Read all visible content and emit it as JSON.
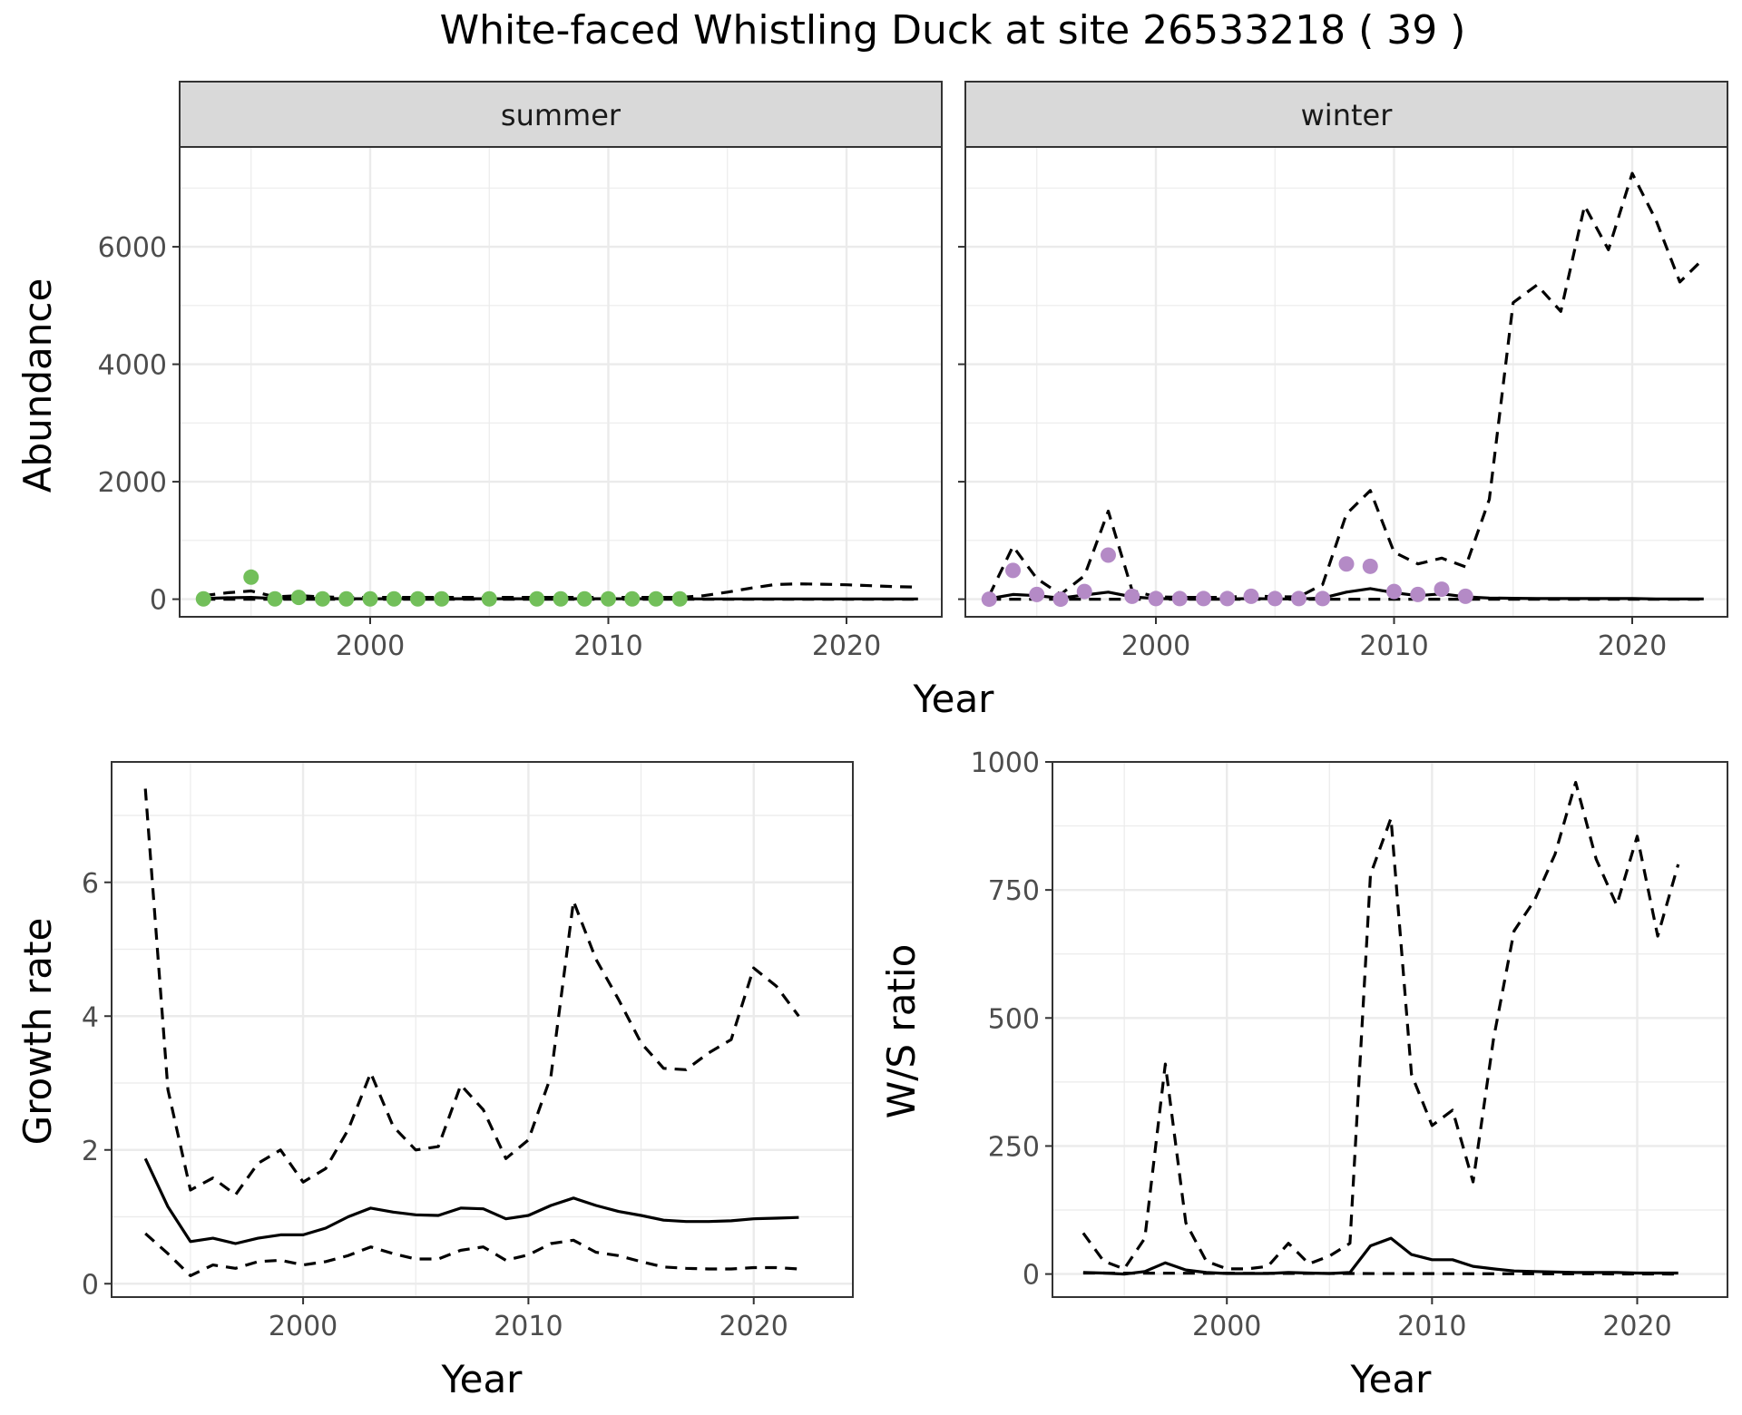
{
  "title": "White-faced Whistling Duck at site 26533218 ( 39 )",
  "chart_data": [
    {
      "type": "line",
      "panel": "summer",
      "xlabel": "Year",
      "ylabel": "Abundance",
      "xlim": [
        1992,
        2024
      ],
      "ylim": [
        -300,
        7700
      ],
      "xticks": [
        2000,
        2010,
        2020
      ],
      "yticks": [
        0,
        2000,
        4000,
        6000
      ],
      "point_color": "#72bf5a",
      "observed": {
        "x": [
          1993,
          1995,
          1996,
          1997,
          1998,
          1999,
          2000,
          2001,
          2002,
          2003,
          2005,
          2007,
          2008,
          2009,
          2010,
          2011,
          2012,
          2013
        ],
        "y": [
          5,
          375,
          5,
          30,
          5,
          5,
          5,
          5,
          5,
          5,
          5,
          5,
          5,
          5,
          5,
          5,
          5,
          5
        ]
      },
      "series": [
        {
          "style": "solid",
          "x": [
            1993,
            1994,
            1995,
            1996,
            1997,
            1998,
            1999,
            2000,
            2001,
            2002,
            2003,
            2004,
            2005,
            2006,
            2007,
            2008,
            2009,
            2010,
            2011,
            2012,
            2013,
            2014,
            2015,
            2016,
            2017,
            2018,
            2019,
            2020,
            2021,
            2022,
            2023
          ],
          "y": [
            10,
            25,
            30,
            12,
            15,
            10,
            8,
            8,
            8,
            8,
            8,
            8,
            8,
            8,
            8,
            8,
            8,
            8,
            8,
            8,
            8,
            5,
            5,
            5,
            5,
            5,
            5,
            5,
            5,
            5,
            5
          ]
        },
        {
          "style": "dashed",
          "x": [
            1993,
            1994,
            1995,
            1996,
            1997,
            1998,
            1999,
            2000,
            2001,
            2002,
            2003,
            2004,
            2005,
            2006,
            2007,
            2008,
            2009,
            2010,
            2011,
            2012,
            2013,
            2014,
            2015,
            2016,
            2017,
            2018,
            2019,
            2020,
            2021,
            2022,
            2023
          ],
          "y": [
            60,
            110,
            140,
            40,
            60,
            40,
            30,
            30,
            30,
            30,
            30,
            30,
            30,
            30,
            30,
            30,
            30,
            30,
            30,
            30,
            30,
            60,
            120,
            190,
            250,
            260,
            255,
            245,
            230,
            215,
            205
          ]
        },
        {
          "style": "dashed",
          "x": [
            1993,
            2023
          ],
          "y": [
            0,
            0
          ]
        }
      ]
    },
    {
      "type": "line",
      "panel": "winter",
      "xlabel": "Year",
      "ylabel": "Abundance",
      "xlim": [
        1992,
        2024
      ],
      "ylim": [
        -300,
        7700
      ],
      "xticks": [
        2000,
        2010,
        2020
      ],
      "yticks": [
        0,
        2000,
        4000,
        6000
      ],
      "point_color": "#b48ac6",
      "observed": {
        "x": [
          1993,
          1994,
          1995,
          1996,
          1997,
          1998,
          1999,
          2000,
          2001,
          2002,
          2003,
          2004,
          2005,
          2006,
          2007,
          2008,
          2009,
          2010,
          2011,
          2012,
          2013
        ],
        "y": [
          0,
          490,
          80,
          0,
          130,
          750,
          50,
          10,
          10,
          10,
          10,
          50,
          10,
          10,
          10,
          600,
          560,
          130,
          80,
          170,
          50
        ]
      },
      "series": [
        {
          "style": "solid",
          "x": [
            1993,
            1994,
            1995,
            1996,
            1997,
            1998,
            1999,
            2000,
            2001,
            2002,
            2003,
            2004,
            2005,
            2006,
            2007,
            2008,
            2009,
            2010,
            2011,
            2012,
            2013,
            2014,
            2015,
            2016,
            2017,
            2018,
            2019,
            2020,
            2021,
            2022,
            2023
          ],
          "y": [
            10,
            80,
            60,
            20,
            70,
            120,
            40,
            10,
            5,
            5,
            5,
            10,
            5,
            5,
            20,
            120,
            180,
            110,
            60,
            90,
            40,
            20,
            15,
            10,
            10,
            10,
            10,
            10,
            5,
            5,
            5
          ]
        },
        {
          "style": "dashed",
          "x": [
            1993,
            1994,
            1995,
            1996,
            1997,
            1998,
            1999,
            2000,
            2001,
            2002,
            2003,
            2004,
            2005,
            2006,
            2007,
            2008,
            2009,
            2010,
            2011,
            2012,
            2013,
            2014,
            2015,
            2016,
            2017,
            2018,
            2019,
            2020,
            2021,
            2022,
            2023
          ],
          "y": [
            60,
            900,
            350,
            80,
            400,
            1500,
            150,
            40,
            30,
            30,
            30,
            60,
            40,
            40,
            250,
            1450,
            1850,
            800,
            600,
            700,
            550,
            1700,
            5050,
            5350,
            4900,
            6700,
            5950,
            7250,
            6450,
            5400,
            5800
          ]
        },
        {
          "style": "dashed",
          "x": [
            1993,
            2023
          ],
          "y": [
            0,
            0
          ]
        }
      ]
    },
    {
      "type": "line",
      "panel": "growth",
      "xlabel": "Year",
      "ylabel": "Growth rate",
      "xlim": [
        1991.5,
        2024.4
      ],
      "ylim": [
        -0.2,
        7.8
      ],
      "xticks": [
        2000,
        2010,
        2020
      ],
      "yticks": [
        0,
        2,
        4,
        6
      ],
      "series": [
        {
          "style": "solid",
          "x": [
            1993,
            1994,
            1995,
            1996,
            1997,
            1998,
            1999,
            2000,
            2001,
            2002,
            2003,
            2004,
            2005,
            2006,
            2007,
            2008,
            2009,
            2010,
            2011,
            2012,
            2013,
            2014,
            2015,
            2016,
            2017,
            2018,
            2019,
            2020,
            2021,
            2022
          ],
          "y": [
            1.87,
            1.15,
            0.63,
            0.68,
            0.6,
            0.68,
            0.73,
            0.73,
            0.83,
            1.0,
            1.13,
            1.07,
            1.03,
            1.02,
            1.13,
            1.12,
            0.97,
            1.02,
            1.17,
            1.28,
            1.17,
            1.08,
            1.02,
            0.95,
            0.93,
            0.93,
            0.94,
            0.97,
            0.98,
            0.99
          ]
        },
        {
          "style": "dashed",
          "x": [
            1993,
            1994,
            1995,
            1996,
            1997,
            1998,
            1999,
            2000,
            2001,
            2002,
            2003,
            2004,
            2005,
            2006,
            2007,
            2008,
            2009,
            2010,
            2011,
            2012,
            2013,
            2014,
            2015,
            2016,
            2017,
            2018,
            2019,
            2020,
            2021,
            2022
          ],
          "y": [
            7.4,
            2.9,
            1.4,
            1.58,
            1.33,
            1.8,
            2.0,
            1.52,
            1.72,
            2.3,
            3.15,
            2.35,
            2.0,
            2.05,
            2.97,
            2.6,
            1.87,
            2.15,
            3.1,
            5.72,
            4.85,
            4.25,
            3.6,
            3.22,
            3.2,
            3.45,
            3.65,
            4.72,
            4.45,
            4.0
          ]
        },
        {
          "style": "dashed",
          "x": [
            1993,
            1994,
            1995,
            1996,
            1997,
            1998,
            1999,
            2000,
            2001,
            2002,
            2003,
            2004,
            2005,
            2006,
            2007,
            2008,
            2009,
            2010,
            2011,
            2012,
            2013,
            2014,
            2015,
            2016,
            2017,
            2018,
            2019,
            2020,
            2021,
            2022
          ],
          "y": [
            0.75,
            0.45,
            0.12,
            0.28,
            0.23,
            0.33,
            0.35,
            0.28,
            0.33,
            0.42,
            0.55,
            0.45,
            0.37,
            0.37,
            0.5,
            0.55,
            0.35,
            0.43,
            0.6,
            0.65,
            0.47,
            0.42,
            0.33,
            0.25,
            0.23,
            0.22,
            0.22,
            0.24,
            0.24,
            0.22
          ]
        }
      ]
    },
    {
      "type": "line",
      "panel": "ratio",
      "xlabel": "Year",
      "ylabel": "W/S ratio",
      "xlim": [
        1991.5,
        2024.4
      ],
      "ylim": [
        -45,
        1000
      ],
      "xticks": [
        2000,
        2010,
        2020
      ],
      "yticks": [
        0,
        250,
        500,
        750,
        1000
      ],
      "series": [
        {
          "style": "solid",
          "x": [
            1993,
            1994,
            1995,
            1996,
            1997,
            1998,
            1999,
            2000,
            2001,
            2002,
            2003,
            2004,
            2005,
            2006,
            2007,
            2008,
            2009,
            2010,
            2011,
            2012,
            2013,
            2014,
            2015,
            2016,
            2017,
            2018,
            2019,
            2020,
            2021,
            2022
          ],
          "y": [
            3,
            2,
            0,
            5,
            22,
            8,
            3,
            1,
            1,
            1,
            3,
            2,
            1,
            3,
            55,
            70,
            38,
            28,
            28,
            15,
            10,
            6,
            5,
            4,
            3,
            3,
            3,
            2,
            2,
            2
          ]
        },
        {
          "style": "dashed",
          "x": [
            1993,
            1994,
            1995,
            1996,
            1997,
            1998,
            1999,
            2000,
            2001,
            2002,
            2003,
            2004,
            2005,
            2006,
            2007,
            2008,
            2009,
            2010,
            2011,
            2012,
            2013,
            2014,
            2015,
            2016,
            2017,
            2018,
            2019,
            2020,
            2021,
            2022
          ],
          "y": [
            80,
            25,
            10,
            70,
            410,
            100,
            25,
            10,
            10,
            15,
            60,
            20,
            35,
            60,
            780,
            890,
            390,
            290,
            320,
            180,
            460,
            670,
            730,
            820,
            960,
            810,
            720,
            855,
            660,
            800
          ]
        },
        {
          "style": "dashed",
          "x": [
            1993,
            2022
          ],
          "y": [
            2,
            0
          ]
        }
      ]
    }
  ]
}
